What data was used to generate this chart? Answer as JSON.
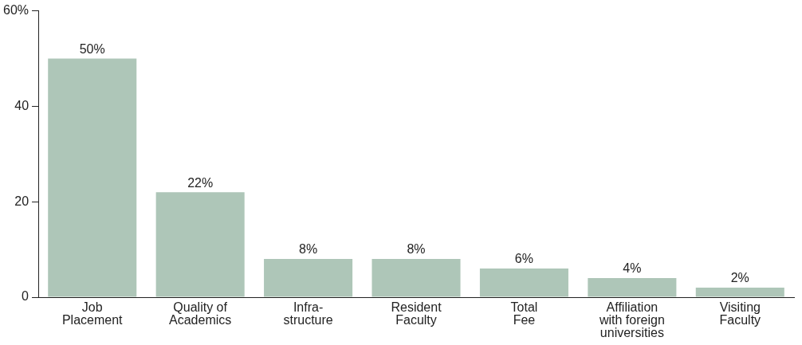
{
  "chart_data": {
    "type": "bar",
    "categories": [
      "Job\nPlacement",
      "Quality of\nAcademics",
      "Infra-\nstructure",
      "Resident\nFaculty",
      "Total\nFee",
      "Affiliation\nwith foreign\nuniversities",
      "Visiting\nFaculty"
    ],
    "values": [
      50,
      22,
      8,
      8,
      6,
      4,
      2
    ],
    "value_labels": [
      "50%",
      "22%",
      "8%",
      "8%",
      "6%",
      "4%",
      "2%"
    ],
    "color": "#aec6b8",
    "ylim": [
      0,
      60
    ],
    "yticks": [
      0,
      20,
      40,
      {
        "value": 60,
        "label": "60%"
      }
    ],
    "grid": false,
    "legend": false
  }
}
